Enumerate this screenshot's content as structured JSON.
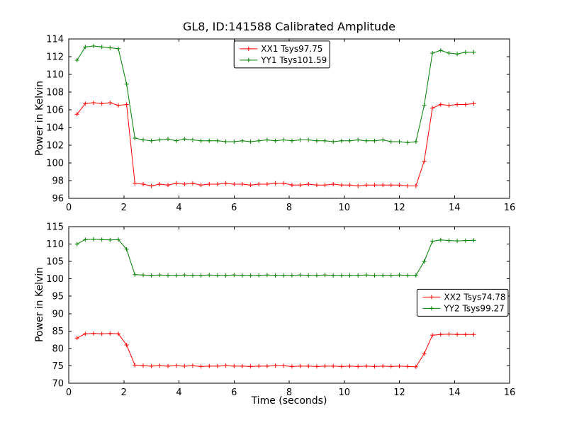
{
  "figure": {
    "title": "GL8, ID:141588 Calibrated Amplitude",
    "background": "#ffffff",
    "frame_color": "#000000"
  },
  "chart_data": [
    {
      "type": "line",
      "name": "top-plot",
      "ylabel": "Power in Kelvin",
      "xlim": [
        0,
        16
      ],
      "ylim": [
        96,
        114
      ],
      "xticks": [
        0,
        2,
        4,
        6,
        8,
        10,
        12,
        14,
        16
      ],
      "yticks": [
        96,
        98,
        100,
        102,
        104,
        106,
        108,
        110,
        112,
        114
      ],
      "grid": false,
      "legend": {
        "position": "upper-center",
        "x": 0.375,
        "y": 0.013
      },
      "x": [
        0.3,
        0.6,
        0.9,
        1.2,
        1.5,
        1.8,
        2.1,
        2.4,
        2.7,
        3.0,
        3.3,
        3.6,
        3.9,
        4.2,
        4.5,
        4.8,
        5.1,
        5.4,
        5.7,
        6.0,
        6.3,
        6.6,
        6.9,
        7.2,
        7.5,
        7.8,
        8.1,
        8.4,
        8.7,
        9.0,
        9.3,
        9.6,
        9.9,
        10.2,
        10.5,
        10.8,
        11.1,
        11.4,
        11.7,
        12.0,
        12.3,
        12.6,
        12.9,
        13.2,
        13.5,
        13.8,
        14.1,
        14.4,
        14.7
      ],
      "series": [
        {
          "name": "XX1 Tsys97.75",
          "color": "#ff0000",
          "marker": "+",
          "values": [
            105.5,
            106.7,
            106.8,
            106.7,
            106.8,
            106.5,
            106.6,
            97.7,
            97.6,
            97.4,
            97.6,
            97.5,
            97.7,
            97.6,
            97.7,
            97.5,
            97.6,
            97.6,
            97.7,
            97.6,
            97.6,
            97.5,
            97.6,
            97.6,
            97.7,
            97.7,
            97.5,
            97.5,
            97.6,
            97.5,
            97.5,
            97.6,
            97.5,
            97.5,
            97.4,
            97.5,
            97.5,
            97.5,
            97.5,
            97.5,
            97.4,
            97.4,
            100.2,
            106.2,
            106.6,
            106.5,
            106.6,
            106.6,
            106.7
          ]
        },
        {
          "name": "YY1 Tsys101.59",
          "color": "#008000",
          "marker": "+",
          "values": [
            111.6,
            113.1,
            113.2,
            113.1,
            113.0,
            112.9,
            108.9,
            102.8,
            102.6,
            102.5,
            102.6,
            102.7,
            102.5,
            102.7,
            102.6,
            102.5,
            102.5,
            102.5,
            102.4,
            102.4,
            102.5,
            102.4,
            102.5,
            102.6,
            102.5,
            102.6,
            102.5,
            102.6,
            102.6,
            102.5,
            102.5,
            102.4,
            102.5,
            102.5,
            102.6,
            102.5,
            102.5,
            102.6,
            102.4,
            102.4,
            102.3,
            102.4,
            106.5,
            112.4,
            112.7,
            112.4,
            112.3,
            112.5,
            112.5
          ]
        }
      ]
    },
    {
      "type": "line",
      "name": "bottom-plot",
      "xlabel": "Time (seconds)",
      "ylabel": "Power in Kelvin",
      "xlim": [
        0,
        16
      ],
      "ylim": [
        70,
        115
      ],
      "xticks": [
        0,
        2,
        4,
        6,
        8,
        10,
        12,
        14,
        16
      ],
      "yticks": [
        70,
        75,
        80,
        85,
        90,
        95,
        100,
        105,
        110,
        115
      ],
      "grid": false,
      "legend": {
        "position": "center-right",
        "x": 0.79,
        "y": 0.4
      },
      "x": [
        0.3,
        0.6,
        0.9,
        1.2,
        1.5,
        1.8,
        2.1,
        2.4,
        2.7,
        3.0,
        3.3,
        3.6,
        3.9,
        4.2,
        4.5,
        4.8,
        5.1,
        5.4,
        5.7,
        6.0,
        6.3,
        6.6,
        6.9,
        7.2,
        7.5,
        7.8,
        8.1,
        8.4,
        8.7,
        9.0,
        9.3,
        9.6,
        9.9,
        10.2,
        10.5,
        10.8,
        11.1,
        11.4,
        11.7,
        12.0,
        12.3,
        12.6,
        12.9,
        13.2,
        13.5,
        13.8,
        14.1,
        14.4,
        14.7
      ],
      "series": [
        {
          "name": "XX2 Tsys74.78",
          "color": "#ff0000",
          "marker": "+",
          "values": [
            83.0,
            84.2,
            84.3,
            84.2,
            84.3,
            84.2,
            81.0,
            75.2,
            75.0,
            74.9,
            75.0,
            74.9,
            75.0,
            74.9,
            75.0,
            74.8,
            74.9,
            74.9,
            75.0,
            74.9,
            74.9,
            74.8,
            74.9,
            74.9,
            75.0,
            75.0,
            74.8,
            74.9,
            74.9,
            74.8,
            74.9,
            74.9,
            74.8,
            74.9,
            74.8,
            74.9,
            74.8,
            74.9,
            74.8,
            74.9,
            74.8,
            74.7,
            78.5,
            83.8,
            84.0,
            84.1,
            84.0,
            84.0,
            84.0
          ]
        },
        {
          "name": "YY2 Tsys99.27",
          "color": "#008000",
          "marker": "+",
          "values": [
            110.0,
            111.3,
            111.4,
            111.3,
            111.2,
            111.3,
            108.5,
            101.2,
            101.1,
            101.0,
            101.1,
            101.0,
            101.0,
            101.1,
            101.0,
            101.0,
            101.1,
            101.0,
            101.0,
            101.1,
            101.0,
            101.0,
            101.0,
            101.1,
            101.0,
            101.0,
            101.0,
            101.1,
            101.0,
            101.0,
            101.1,
            101.0,
            101.0,
            101.0,
            101.0,
            101.1,
            101.0,
            101.0,
            101.0,
            101.1,
            101.0,
            101.0,
            105.0,
            110.8,
            111.2,
            111.0,
            110.9,
            111.0,
            111.1
          ]
        }
      ]
    }
  ]
}
